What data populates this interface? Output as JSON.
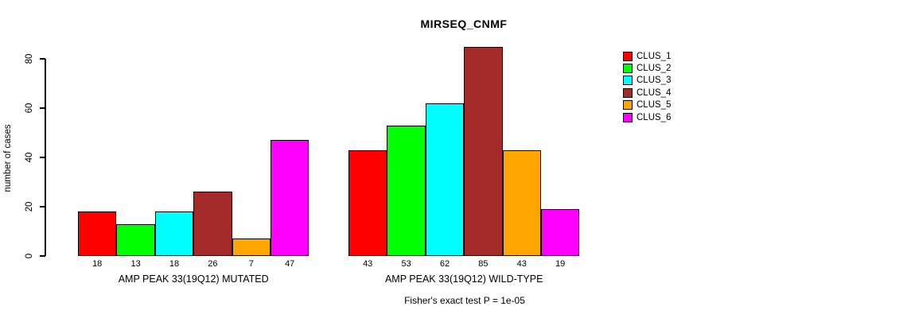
{
  "chart_data": {
    "type": "bar",
    "title": "MIRSEQ_CNMF",
    "ylabel": "number of cases",
    "ylim": [
      0,
      80
    ],
    "yticks": [
      0,
      20,
      40,
      60,
      80
    ],
    "grid": false,
    "legend_position": "right",
    "series_names": [
      "CLUS_1",
      "CLUS_2",
      "CLUS_3",
      "CLUS_4",
      "CLUS_5",
      "CLUS_6"
    ],
    "series_colors": [
      "#ff0000",
      "#00ff00",
      "#00ffff",
      "#a52a2a",
      "#ffa500",
      "#ff00ff"
    ],
    "groups": [
      {
        "label": "AMP PEAK 33(19Q12) MUTATED",
        "values": [
          18,
          13,
          18,
          26,
          7,
          47
        ]
      },
      {
        "label": "AMP PEAK 33(19Q12) WILD-TYPE",
        "values": [
          43,
          53,
          62,
          85,
          43,
          19
        ]
      }
    ],
    "value_labels_shown": true,
    "footnote": "Fisher's exact test P = 1e-05"
  }
}
